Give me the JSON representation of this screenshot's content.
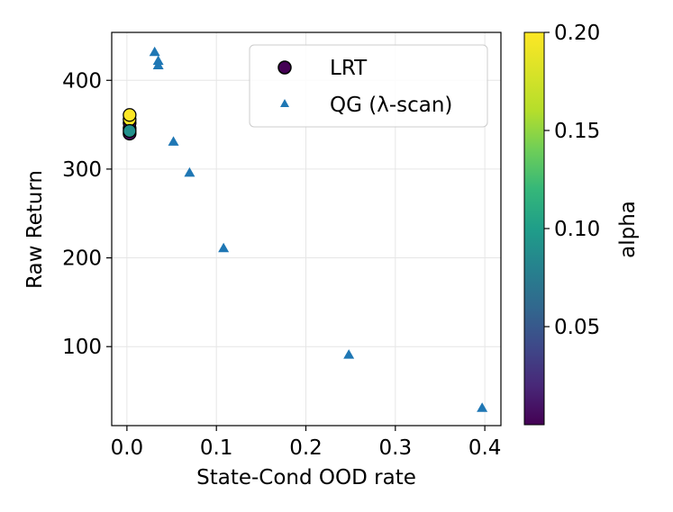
{
  "chart_data": {
    "type": "scatter",
    "xlabel": "State-Cond OOD rate",
    "ylabel": "Raw Return",
    "xlim": [
      -0.017,
      0.418
    ],
    "ylim": [
      11,
      454
    ],
    "xticks": [
      0.0,
      0.1,
      0.2,
      0.3,
      0.4
    ],
    "xtick_labels": [
      "0.0",
      "0.1",
      "0.2",
      "0.3",
      "0.4"
    ],
    "yticks": [
      100,
      200,
      300,
      400
    ],
    "ytick_labels": [
      "100",
      "200",
      "300",
      "400"
    ],
    "grid": true,
    "legend_position": "top-right",
    "series": [
      {
        "name": "LRT",
        "marker": "circle",
        "color_by": "alpha",
        "points": [
          {
            "x": 0.003,
            "y": 340,
            "alpha": 0.005
          },
          {
            "x": 0.003,
            "y": 346,
            "alpha": 0.02
          },
          {
            "x": 0.003,
            "y": 352,
            "alpha": 0.01
          },
          {
            "x": 0.003,
            "y": 356,
            "alpha": 0.2
          },
          {
            "x": 0.003,
            "y": 361,
            "alpha": 0.2
          },
          {
            "x": 0.003,
            "y": 343,
            "alpha": 0.1
          }
        ]
      },
      {
        "name": "QG (λ-scan)",
        "marker": "triangle",
        "color": "#1f77b4",
        "points": [
          {
            "x": 0.031,
            "y": 432
          },
          {
            "x": 0.035,
            "y": 422
          },
          {
            "x": 0.035,
            "y": 417
          },
          {
            "x": 0.052,
            "y": 331
          },
          {
            "x": 0.07,
            "y": 296
          },
          {
            "x": 0.108,
            "y": 211
          },
          {
            "x": 0.248,
            "y": 91
          },
          {
            "x": 0.397,
            "y": 31
          }
        ]
      }
    ],
    "colorbar": {
      "label": "alpha",
      "range": [
        0.0,
        0.2
      ],
      "ticks": [
        0.05,
        0.1,
        0.15,
        0.2
      ],
      "tick_labels": [
        "0.05",
        "0.10",
        "0.15",
        "0.20"
      ],
      "colormap": "viridis"
    }
  }
}
